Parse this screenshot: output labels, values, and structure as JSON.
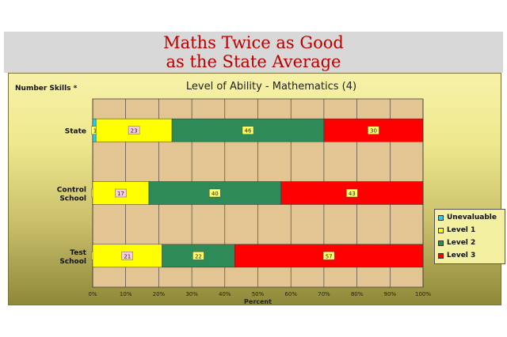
{
  "slide": {
    "title_line1": "Maths Twice as Good",
    "title_line2": "as the State Average",
    "subtitle": "Number Skills *"
  },
  "colors": {
    "title": "#b80000",
    "plot_bg": "#e3c594",
    "unevaluable": "#2ec8f0",
    "level1": "#ffff00",
    "level2": "#2e8b57",
    "level3": "#ff0000",
    "label_box_default": "#ffff66",
    "label_box_level1": "#f7cfe0"
  },
  "chart_data": {
    "type": "bar",
    "orientation": "horizontal",
    "stacked": "percent",
    "title": "Level of Ability - Mathematics (4)",
    "xlabel": "Percent",
    "ylabel": "",
    "xlim": [
      0,
      100
    ],
    "xticks": [
      "0%",
      "10%",
      "20%",
      "30%",
      "40%",
      "50%",
      "60%",
      "70%",
      "80%",
      "90%",
      "100%"
    ],
    "grid": true,
    "legend_position": "right",
    "categories": [
      "State",
      "Control School",
      "Test School"
    ],
    "category_labels": [
      [
        "State"
      ],
      [
        "Control",
        "School"
      ],
      [
        "Test",
        "School"
      ]
    ],
    "series": [
      {
        "name": "Unevaluable",
        "values": [
          1,
          0,
          0
        ]
      },
      {
        "name": "Level 1",
        "values": [
          23,
          17,
          21
        ]
      },
      {
        "name": "Level 2",
        "values": [
          46,
          40,
          22
        ]
      },
      {
        "name": "Level 3",
        "values": [
          30,
          43,
          57
        ]
      }
    ]
  }
}
